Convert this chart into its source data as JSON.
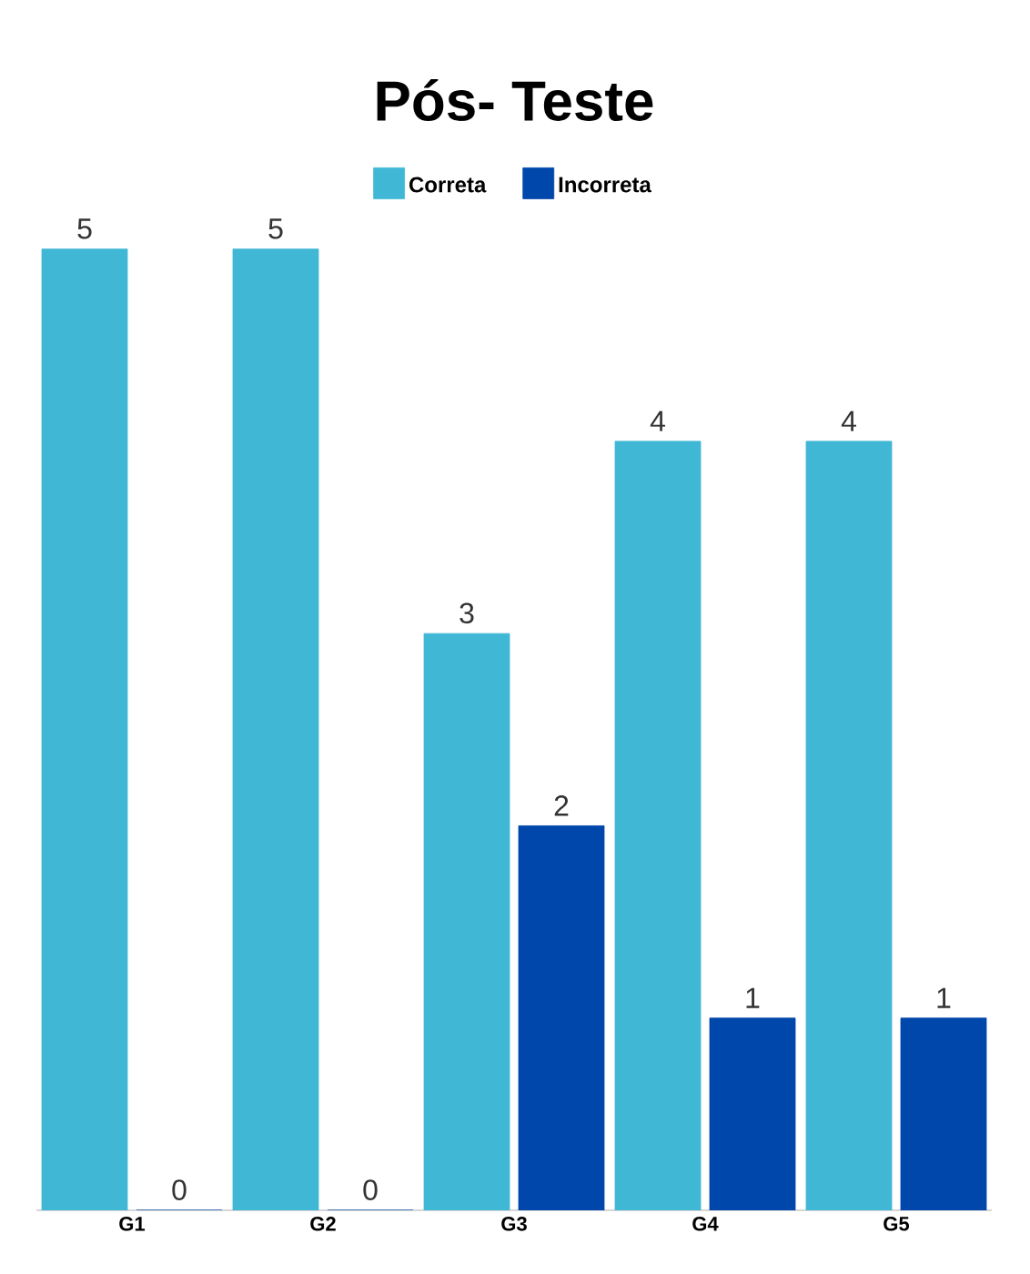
{
  "chart_data": {
    "type": "bar",
    "title": "Pós- Teste",
    "categories": [
      "G1",
      "G2",
      "G3",
      "G4",
      "G5"
    ],
    "series": [
      {
        "name": "Correta",
        "color": "#41b7d6",
        "values": [
          5,
          5,
          3,
          4,
          4
        ]
      },
      {
        "name": "Incorreta",
        "color": "#0047ab",
        "values": [
          0,
          0,
          2,
          1,
          1
        ]
      }
    ],
    "data_labels": true,
    "legend": "top"
  }
}
